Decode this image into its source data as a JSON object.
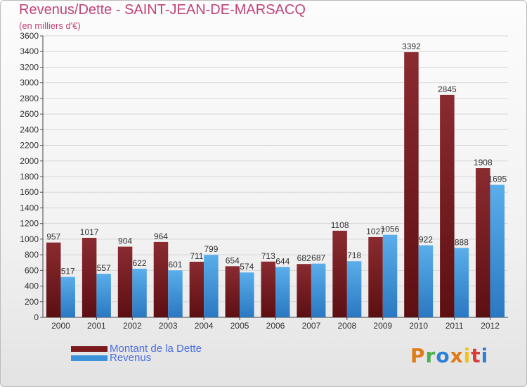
{
  "chart_data": {
    "type": "bar",
    "title": "Revenus/Dette - SAINT-JEAN-DE-MARSACQ",
    "subtitle": "(en milliers d'€)",
    "xlabel": "",
    "ylabel": "",
    "ylim": [
      0,
      3600
    ],
    "yticks": [
      "0",
      "200",
      "400",
      "600",
      "800",
      "1000",
      "1200",
      "1400",
      "1600",
      "1800",
      "2000",
      "2200",
      "2400",
      "2600",
      "2800",
      "3000",
      "3200",
      "3400",
      "3600"
    ],
    "grid": true,
    "categories": [
      "2000",
      "2001",
      "2002",
      "2003",
      "2004",
      "2005",
      "2006",
      "2007",
      "2008",
      "2009",
      "2010",
      "2011",
      "2012"
    ],
    "series": [
      {
        "name": "Montant de la Dette",
        "color": "#7a1a1d",
        "values": [
          957,
          1017,
          904,
          964,
          711,
          654,
          713,
          682,
          1108,
          1027,
          3392,
          2845,
          1908
        ]
      },
      {
        "name": "Revenus",
        "color": "#3c92d8",
        "values": [
          517,
          557,
          622,
          601,
          799,
          574,
          644,
          687,
          718,
          1056,
          922,
          888,
          1695
        ]
      }
    ],
    "legend": "bottom-left"
  },
  "branding": {
    "logo_text": "Proxiti",
    "logo_colors": [
      "#e07b1a",
      "#4caf50",
      "#2e7fd6",
      "#e07b1a",
      "#f2c21b",
      "#d93a3a",
      "#2e7fd6"
    ]
  }
}
